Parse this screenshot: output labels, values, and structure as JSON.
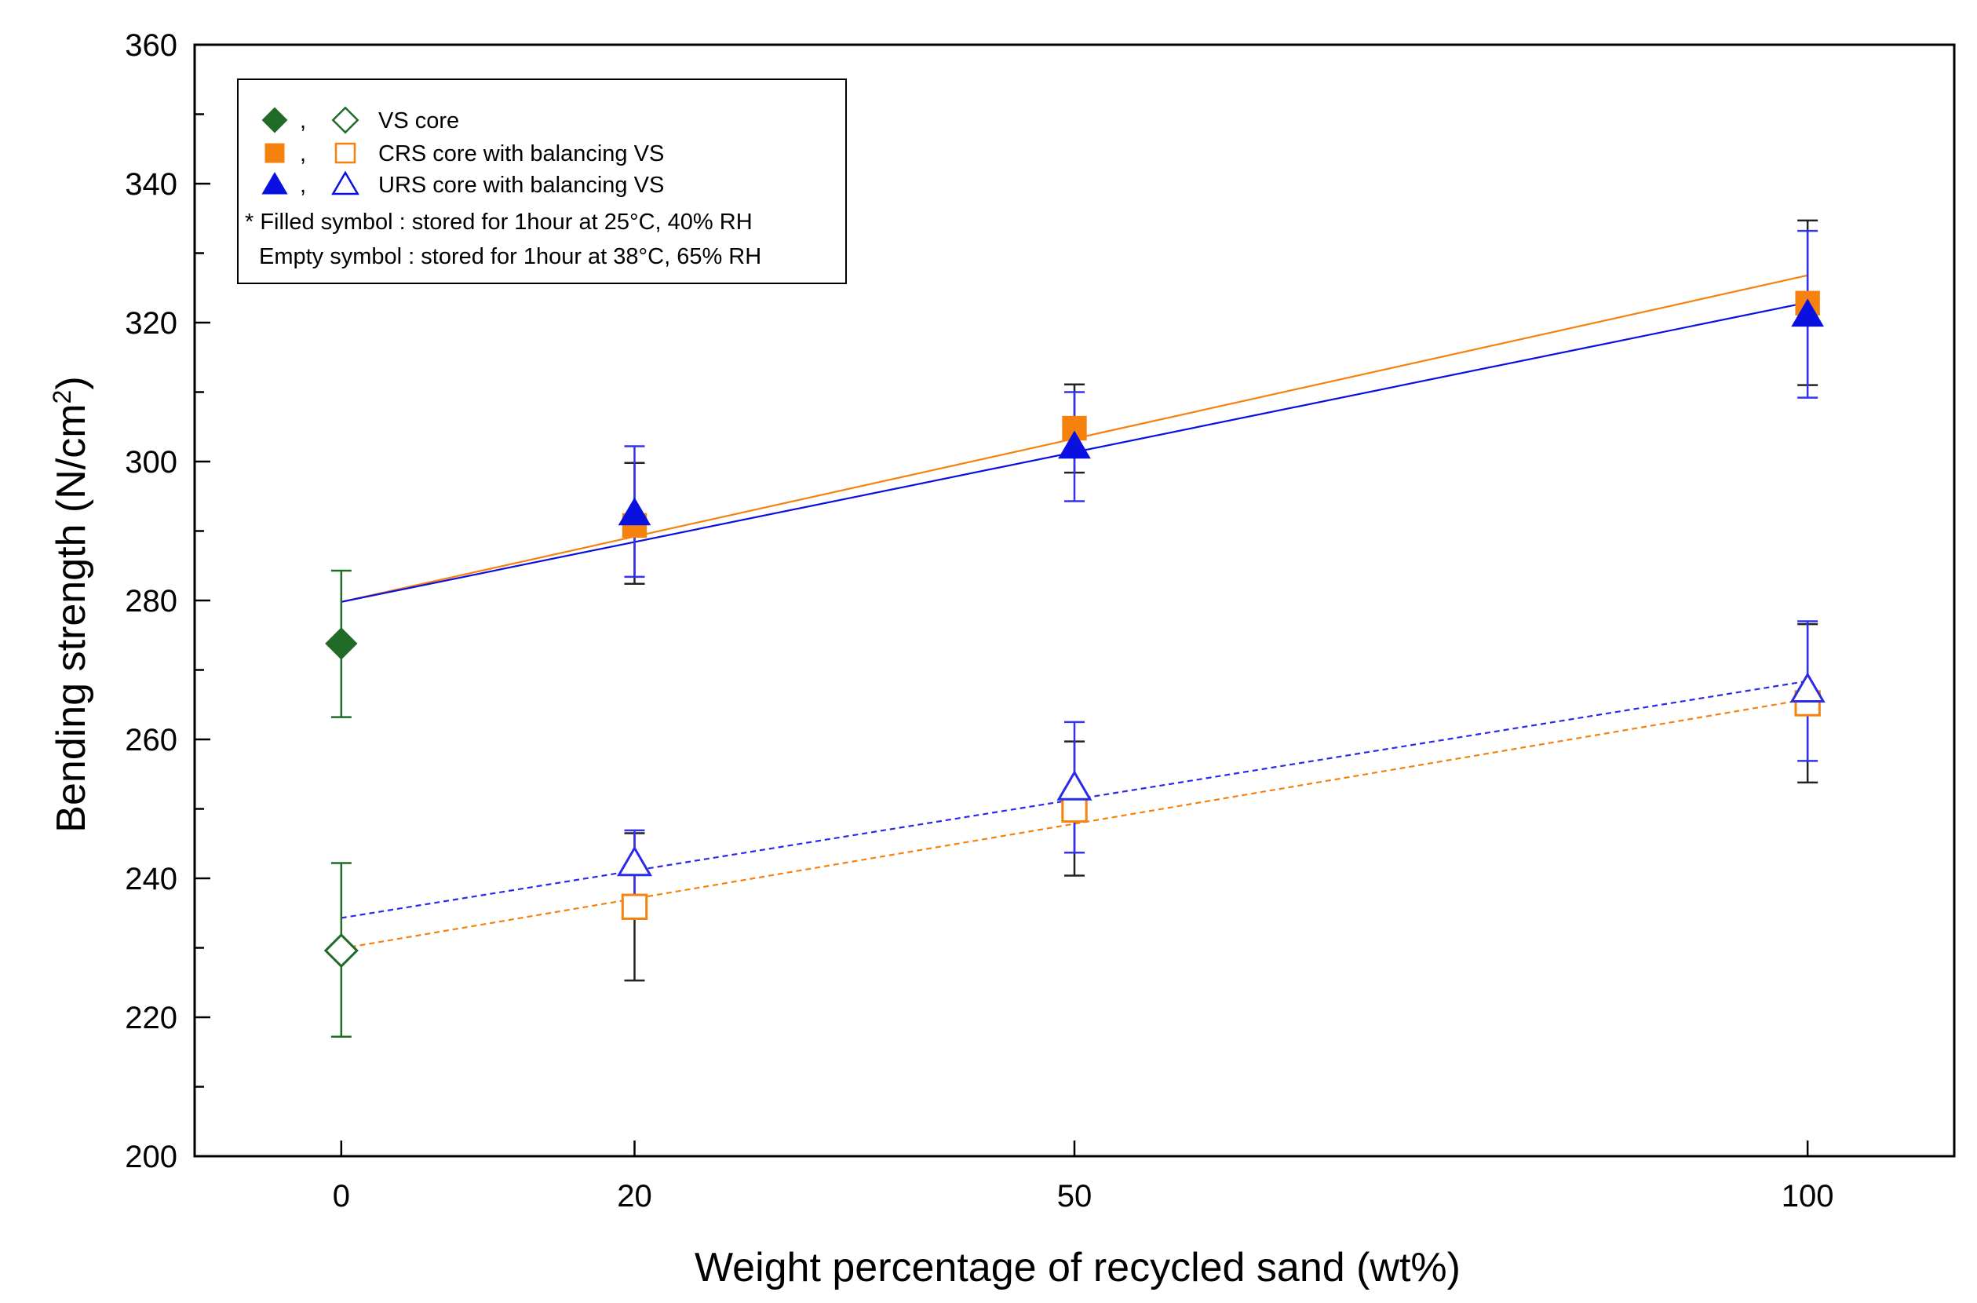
{
  "chart_data": {
    "type": "scatter",
    "title": "",
    "xlabel": "Weight percentage of recycled sand (wt%)",
    "ylabel_main": "Bending strength (N/cm",
    "ylabel_sup": "2",
    "ylabel_close": ")",
    "ylim": [
      200,
      360
    ],
    "yticks": [
      200,
      220,
      240,
      260,
      280,
      300,
      320,
      340,
      360
    ],
    "categories": [
      "0",
      "20",
      "50",
      "100"
    ],
    "x_range": [
      -20,
      220
    ],
    "x_positions": [
      0,
      40,
      100,
      200
    ],
    "series": [
      {
        "name": "VS core (filled)",
        "marker": "diamond",
        "filled": true,
        "color": "#1f6b27",
        "points": [
          {
            "x": 0,
            "y": 273.8,
            "err_lo": 263.2,
            "err_hi": 284.3
          }
        ]
      },
      {
        "name": "VS core (empty)",
        "marker": "diamond",
        "filled": false,
        "color": "#1f6b27",
        "points": [
          {
            "x": 0,
            "y": 229.6,
            "err_lo": 217.2,
            "err_hi": 242.2
          }
        ]
      },
      {
        "name": "CRS core with balancing VS (filled)",
        "marker": "square",
        "filled": true,
        "color": "#f5820f",
        "err_color": "#222222",
        "points": [
          {
            "x": 20,
            "y": 290.8,
            "err_lo": 282.4,
            "err_hi": 299.8
          },
          {
            "x": 50,
            "y": 304.8,
            "err_lo": 298.4,
            "err_hi": 311.1
          },
          {
            "x": 100,
            "y": 322.8,
            "err_lo": 311.0,
            "err_hi": 334.7
          }
        ]
      },
      {
        "name": "URS core with balancing VS (filled)",
        "marker": "triangle",
        "filled": true,
        "color": "#0a10e0",
        "err_color": "#3333ee",
        "points": [
          {
            "x": 20,
            "y": 292.6,
            "err_lo": 283.4,
            "err_hi": 302.2
          },
          {
            "x": 50,
            "y": 302.2,
            "err_lo": 294.3,
            "err_hi": 310.0
          },
          {
            "x": 100,
            "y": 321.2,
            "err_lo": 309.2,
            "err_hi": 333.2
          }
        ]
      },
      {
        "name": "CRS core with balancing VS (empty)",
        "marker": "square",
        "filled": false,
        "color": "#f5820f",
        "err_color": "#222222",
        "points": [
          {
            "x": 20,
            "y": 235.9,
            "err_lo": 225.3,
            "err_hi": 246.5
          },
          {
            "x": 50,
            "y": 249.9,
            "err_lo": 240.4,
            "err_hi": 259.7
          },
          {
            "x": 100,
            "y": 265.2,
            "err_lo": 253.8,
            "err_hi": 276.6
          }
        ]
      },
      {
        "name": "URS core with balancing VS (empty)",
        "marker": "triangle",
        "filled": false,
        "color": "#2a2ae8",
        "err_color": "#3333ee",
        "points": [
          {
            "x": 20,
            "y": 242.2,
            "err_lo": 237.6,
            "err_hi": 246.9
          },
          {
            "x": 50,
            "y": 253.1,
            "err_lo": 243.7,
            "err_hi": 262.5
          },
          {
            "x": 100,
            "y": 267.2,
            "err_lo": 256.9,
            "err_hi": 277.0
          }
        ]
      }
    ],
    "fit_lines": [
      {
        "name": "CRS filled fit",
        "color": "#f5820f",
        "dashed": false,
        "x": [
          0,
          100
        ],
        "y": [
          279.8,
          326.8
        ]
      },
      {
        "name": "URS filled fit",
        "color": "#0a10e0",
        "dashed": false,
        "x": [
          0,
          100
        ],
        "y": [
          279.8,
          322.9
        ]
      },
      {
        "name": "URS empty fit",
        "color": "#2a2ae8",
        "dashed": true,
        "x": [
          0,
          100
        ],
        "y": [
          234.3,
          268.4
        ]
      },
      {
        "name": "CRS empty fit",
        "color": "#f5820f",
        "dashed": true,
        "x": [
          0,
          100
        ],
        "y": [
          229.9,
          265.8
        ]
      }
    ],
    "legend": {
      "position": "top-left",
      "entries": [
        {
          "label": "VS core",
          "marker": "diamond",
          "color": "#1f6b27"
        },
        {
          "label": "CRS core with balancing VS",
          "marker": "square",
          "color": "#f5820f"
        },
        {
          "label": "URS core with balancing VS",
          "marker": "triangle",
          "color": "#0a10e0"
        }
      ],
      "separator": ",",
      "note_lines": [
        "* Filled symbol : stored for 1hour at 25°C, 40% RH",
        "Empty symbol : stored for 1hour at 38°C, 65% RH"
      ]
    }
  }
}
